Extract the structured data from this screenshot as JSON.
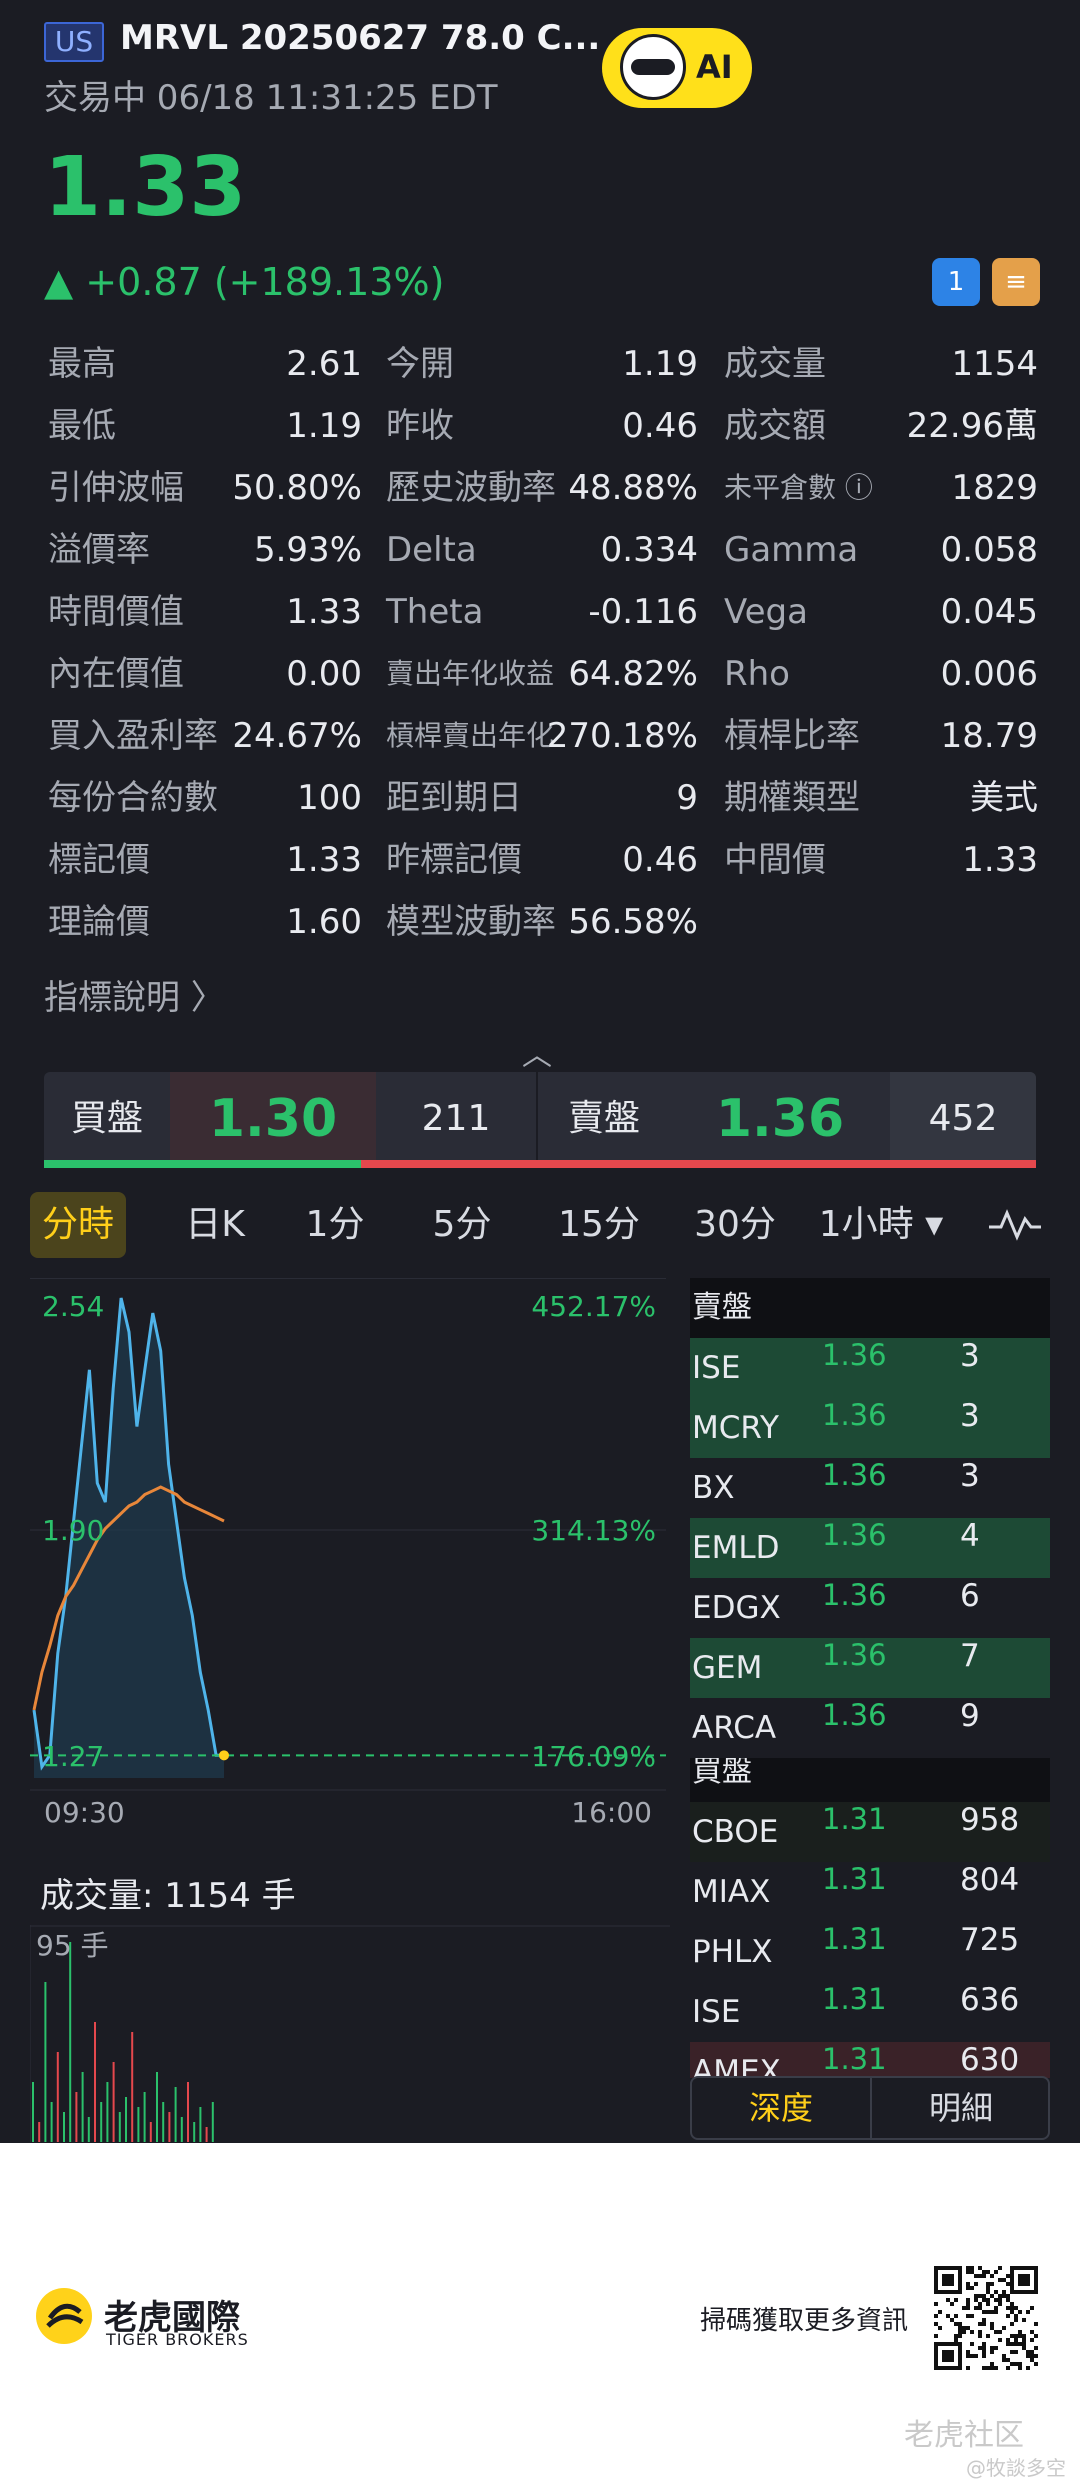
{
  "header": {
    "market": "US",
    "title": "MRVL 20250627 78.0 C...",
    "status_time": "交易中 06/18 11:31:25 EDT",
    "ai_label": "AI"
  },
  "quote": {
    "price": "1.33",
    "change": "▲ +0.87 (+189.13%)",
    "icon1": "1",
    "icon2": "≡"
  },
  "stats": [
    [
      {
        "l": "最高",
        "v": "2.61"
      },
      {
        "l": "今開",
        "v": "1.19"
      },
      {
        "l": "成交量",
        "v": "1154"
      }
    ],
    [
      {
        "l": "最低",
        "v": "1.19"
      },
      {
        "l": "昨收",
        "v": "0.46"
      },
      {
        "l": "成交額",
        "v": "22.96萬"
      }
    ],
    [
      {
        "l": "引伸波幅",
        "v": "50.80%"
      },
      {
        "l": "歷史波動率",
        "v": "48.88%"
      },
      {
        "l": "未平倉數 ⓘ",
        "v": "1829"
      }
    ],
    [
      {
        "l": "溢價率",
        "v": "5.93%"
      },
      {
        "l": "Delta",
        "v": "0.334"
      },
      {
        "l": "Gamma",
        "v": "0.058"
      }
    ],
    [
      {
        "l": "時間價值",
        "v": "1.33"
      },
      {
        "l": "Theta",
        "v": "-0.116"
      },
      {
        "l": "Vega",
        "v": "0.045"
      }
    ],
    [
      {
        "l": "內在價值",
        "v": "0.00"
      },
      {
        "l": "賣出年化收益",
        "v": "64.82%"
      },
      {
        "l": "Rho",
        "v": "0.006"
      }
    ],
    [
      {
        "l": "買入盈利率",
        "v": "24.67%"
      },
      {
        "l": "槓桿賣出年化",
        "v": "270.18%"
      },
      {
        "l": "槓桿比率",
        "v": "18.79"
      }
    ],
    [
      {
        "l": "每份合約數",
        "v": "100"
      },
      {
        "l": "距到期日",
        "v": "9"
      },
      {
        "l": "期權類型",
        "v": "美式"
      }
    ],
    [
      {
        "l": "標記價",
        "v": "1.33"
      },
      {
        "l": "昨標記價",
        "v": "0.46"
      },
      {
        "l": "中間價",
        "v": "1.33"
      }
    ],
    [
      {
        "l": "理論價",
        "v": "1.60"
      },
      {
        "l": "模型波動率",
        "v": "56.58%"
      },
      {
        "l": "",
        "v": ""
      }
    ]
  ],
  "indicator_link": "指標說明 〉",
  "collapse": "︿",
  "bidask": {
    "bid_label": "買盤",
    "bid_price": "1.30",
    "bid_size": "211",
    "ask_label": "賣盤",
    "ask_price": "1.36",
    "ask_size": "452",
    "bid_share": 0.32
  },
  "tabs": [
    "分時",
    "日K",
    "1分",
    "5分",
    "15分",
    "30分",
    "1小時 ▾"
  ],
  "chart": {
    "y_high": "2.54",
    "y_mid": "1.90",
    "y_low": "1.27",
    "pct_high": "452.17%",
    "pct_mid": "314.13%",
    "pct_low": "176.09%",
    "x_start": "09:30",
    "x_end": "16:00"
  },
  "chart_data": {
    "type": "line",
    "x_range": [
      "09:30",
      "16:00"
    ],
    "ylim": [
      1.27,
      2.54
    ],
    "series": [
      {
        "values": [
          1.45,
          1.3,
          1.33,
          1.6,
          1.75,
          1.95,
          2.15,
          2.35,
          2.05,
          2.0,
          2.3,
          2.54,
          2.45,
          2.2,
          2.35,
          2.5,
          2.4,
          2.1,
          1.95,
          1.8,
          1.7,
          1.55,
          1.45,
          1.33,
          1.33
        ]
      },
      {
        "values": [
          1.45,
          1.55,
          1.62,
          1.7,
          1.75,
          1.78,
          1.82,
          1.86,
          1.9,
          1.93,
          1.95,
          1.97,
          1.99,
          2.0,
          2.02,
          2.03,
          2.04,
          2.03,
          2.02,
          2.0,
          1.99,
          1.98,
          1.97,
          1.96,
          1.95
        ]
      }
    ]
  },
  "orderbook": {
    "ask_header": "賣盤",
    "asks": [
      {
        "ex": "ISE",
        "p": "1.36",
        "q": "3"
      },
      {
        "ex": "MCRY",
        "p": "1.36",
        "q": "3"
      },
      {
        "ex": "BX",
        "p": "1.36",
        "q": "3"
      },
      {
        "ex": "EMLD",
        "p": "1.36",
        "q": "4"
      },
      {
        "ex": "EDGX",
        "p": "1.36",
        "q": "6"
      },
      {
        "ex": "GEM",
        "p": "1.36",
        "q": "7"
      },
      {
        "ex": "ARCA",
        "p": "1.36",
        "q": "9"
      }
    ],
    "bid_header": "買盤",
    "bids": [
      {
        "ex": "CBOE",
        "p": "1.31",
        "q": "958"
      },
      {
        "ex": "MIAX",
        "p": "1.31",
        "q": "804"
      },
      {
        "ex": "PHLX",
        "p": "1.31",
        "q": "725"
      },
      {
        "ex": "ISE",
        "p": "1.31",
        "q": "636"
      },
      {
        "ex": "AMEX",
        "p": "1.31",
        "q": "630"
      }
    ],
    "tab_depth": "深度",
    "tab_detail": "明細"
  },
  "volume": {
    "title": "成交量:  1154 手",
    "max_label": "95 手"
  },
  "footer": {
    "brand_cn": "老虎國際",
    "brand_en": "TIGER BROKERS",
    "scan_text": "掃碼獲取更多資訊",
    "watermark": "老虎社区",
    "watermark_sub": "@牧談多空"
  },
  "colors": {
    "up": "#2bc16b",
    "down": "#e5484d",
    "accent": "#ffcf1a",
    "line": "#4fb4ea",
    "avg": "#e8873a"
  }
}
